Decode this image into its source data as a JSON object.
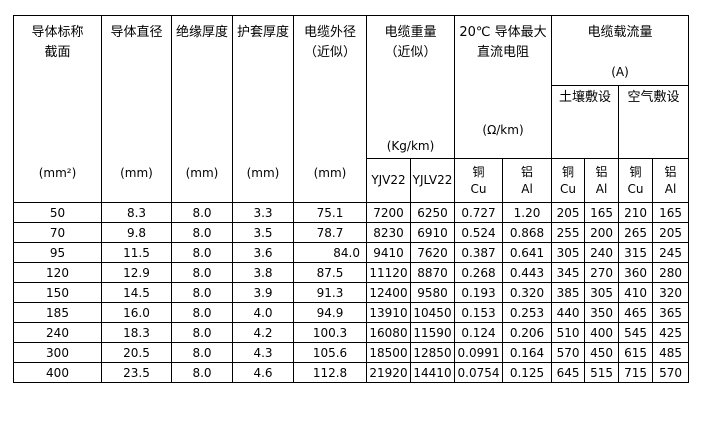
{
  "page": {
    "background": "#ffffff"
  },
  "colors": {
    "border": "#000000",
    "text": "#000000"
  },
  "table": {
    "header": {
      "conductor_section": {
        "title": [
          "导体标称",
          "截面"
        ],
        "unit": "(mm²)"
      },
      "conductor_diameter": {
        "title": [
          "导体直径"
        ],
        "unit": "(mm)"
      },
      "insulation_thickness": {
        "title": [
          "绝缘厚度"
        ],
        "unit": "(mm)"
      },
      "sheath_thickness": {
        "title": [
          "护套厚度"
        ],
        "unit": "(mm)"
      },
      "cable_od": {
        "title": [
          "电缆外径",
          "（近似）"
        ],
        "unit": "(mm)"
      },
      "cable_weight": {
        "title": [
          "电缆重量",
          "（近似）"
        ],
        "unit": "(Kg/km)",
        "subcols": [
          "YJV22",
          "YJLV22"
        ]
      },
      "dc_resistance": {
        "title": [
          "20℃ 导体最大",
          "直流电阻"
        ],
        "unit": "(Ω/km)",
        "subcols": [
          {
            "cn": "铜",
            "en": "Cu"
          },
          {
            "cn": "铝",
            "en": "Al"
          }
        ]
      },
      "ampacity": {
        "title": "电缆载流量",
        "unit": "(A)",
        "groups": [
          "土壤敷设",
          "空气敷设"
        ],
        "subcols": [
          {
            "cn": "铜",
            "en": "Cu"
          },
          {
            "cn": "铝",
            "en": "Al"
          },
          {
            "cn": "铜",
            "en": "Cu"
          },
          {
            "cn": "铝",
            "en": "Al"
          }
        ]
      }
    },
    "rows": [
      [
        "50",
        "8.3",
        "8.0",
        "3.3",
        "75.1",
        "7200",
        "6250",
        "0.727",
        "1.20",
        "205",
        "165",
        "210",
        "165"
      ],
      [
        "70",
        "9.8",
        "8.0",
        "3.5",
        "78.7",
        "8230",
        "6910",
        "0.524",
        "0.868",
        "255",
        "200",
        "265",
        "205"
      ],
      [
        "95",
        "11.5",
        "8.0",
        "3.6",
        "84.0",
        "9410",
        "7620",
        "0.387",
        "0.641",
        "305",
        "240",
        "315",
        "245"
      ],
      [
        "120",
        "12.9",
        "8.0",
        "3.8",
        "87.5",
        "11120",
        "8870",
        "0.268",
        "0.443",
        "345",
        "270",
        "360",
        "280"
      ],
      [
        "150",
        "14.5",
        "8.0",
        "3.9",
        "91.3",
        "12400",
        "9580",
        "0.193",
        "0.320",
        "385",
        "305",
        "410",
        "320"
      ],
      [
        "185",
        "16.0",
        "8.0",
        "4.0",
        "94.9",
        "13910",
        "10450",
        "0.153",
        "0.253",
        "440",
        "350",
        "465",
        "365"
      ],
      [
        "240",
        "18.3",
        "8.0",
        "4.2",
        "100.3",
        "16080",
        "11590",
        "0.124",
        "0.206",
        "510",
        "400",
        "545",
        "425"
      ],
      [
        "300",
        "20.5",
        "8.0",
        "4.3",
        "105.6",
        "18500",
        "12850",
        "0.0991",
        "0.164",
        "570",
        "450",
        "615",
        "485"
      ],
      [
        "400",
        "23.5",
        "8.0",
        "4.6",
        "112.8",
        "21920",
        "14410",
        "0.0754",
        "0.125",
        "645",
        "515",
        "715",
        "570"
      ]
    ],
    "right_aligned_cells": [
      [
        2,
        4
      ]
    ]
  }
}
